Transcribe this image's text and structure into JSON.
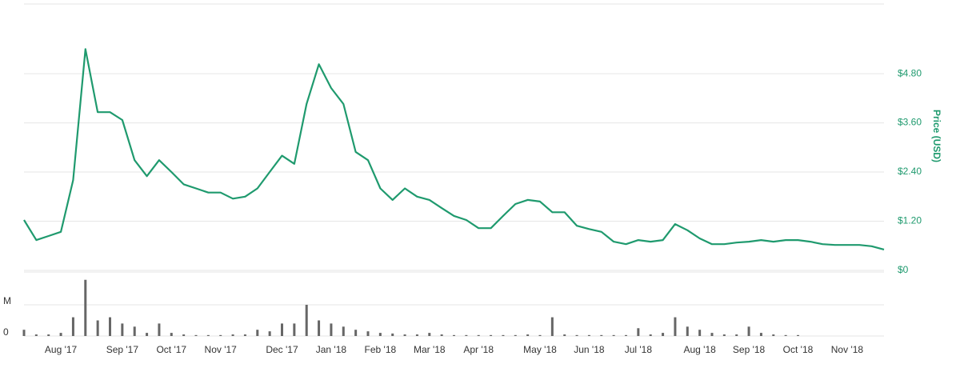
{
  "chart_data": [
    {
      "type": "line",
      "y_label": "Price (USD)",
      "color": "#1f9a6e",
      "grid": true,
      "categories": [
        null,
        null,
        null,
        "Aug '17",
        null,
        null,
        null,
        null,
        "Sep '17",
        null,
        null,
        null,
        "Oct '17",
        null,
        null,
        null,
        "Nov '17",
        null,
        null,
        null,
        null,
        "Dec '17",
        null,
        null,
        null,
        "Jan '18",
        null,
        null,
        null,
        "Feb '18",
        null,
        null,
        null,
        "Mar '18",
        null,
        null,
        null,
        "Apr '18",
        null,
        null,
        null,
        null,
        "May '18",
        null,
        null,
        null,
        "Jun '18",
        null,
        null,
        null,
        "Jul '18",
        null,
        null,
        null,
        null,
        "Aug '18",
        null,
        null,
        null,
        "Sep '18",
        null,
        null,
        null,
        "Oct '18",
        null,
        null,
        null,
        "Nov '18",
        null,
        null,
        null
      ],
      "values": [
        1.23,
        0.74,
        0.84,
        0.94,
        2.2,
        5.4,
        3.86,
        3.86,
        3.67,
        2.69,
        2.3,
        2.69,
        2.4,
        2.1,
        2.0,
        1.9,
        1.9,
        1.75,
        1.8,
        2.0,
        2.4,
        2.8,
        2.6,
        4.06,
        5.03,
        4.45,
        4.06,
        2.89,
        2.69,
        2.0,
        1.72,
        2.0,
        1.8,
        1.72,
        1.52,
        1.33,
        1.23,
        1.03,
        1.03,
        1.33,
        1.62,
        1.72,
        1.68,
        1.42,
        1.42,
        1.09,
        1.01,
        0.94,
        0.7,
        0.64,
        0.74,
        0.7,
        0.74,
        1.13,
        0.98,
        0.78,
        0.64,
        0.64,
        0.68,
        0.7,
        0.74,
        0.7,
        0.74,
        0.74,
        0.7,
        0.64,
        0.62,
        0.62,
        0.62,
        0.59,
        0.51
      ],
      "ylim": [
        0,
        6.5
      ],
      "yticks": [
        {
          "value": 0,
          "label": "$0"
        },
        {
          "value": 1.2,
          "label": "$1.20"
        },
        {
          "value": 2.4,
          "label": "$2.40"
        },
        {
          "value": 3.6,
          "label": "$3.60"
        },
        {
          "value": 4.8,
          "label": "$4.80"
        }
      ]
    },
    {
      "type": "bar",
      "color": "#666666",
      "grid": true,
      "values": [
        0.2,
        0.05,
        0.05,
        0.1,
        0.6,
        1.8,
        0.5,
        0.6,
        0.4,
        0.3,
        0.1,
        0.4,
        0.1,
        0.05,
        0.03,
        0.03,
        0.03,
        0.05,
        0.05,
        0.2,
        0.15,
        0.4,
        0.4,
        1.0,
        0.5,
        0.4,
        0.3,
        0.2,
        0.15,
        0.1,
        0.08,
        0.05,
        0.05,
        0.1,
        0.05,
        0.03,
        0.03,
        0.03,
        0.03,
        0.03,
        0.03,
        0.05,
        0.03,
        0.6,
        0.05,
        0.03,
        0.03,
        0.03,
        0.03,
        0.03,
        0.25,
        0.05,
        0.1,
        0.6,
        0.3,
        0.2,
        0.1,
        0.05,
        0.05,
        0.3,
        0.1,
        0.05,
        0.03,
        0.03,
        0,
        0,
        0,
        0,
        0,
        0,
        0
      ],
      "ylim": [
        0,
        2.05
      ],
      "yticks": [
        0,
        {
          "value": 1,
          "label": "M"
        }
      ]
    }
  ]
}
